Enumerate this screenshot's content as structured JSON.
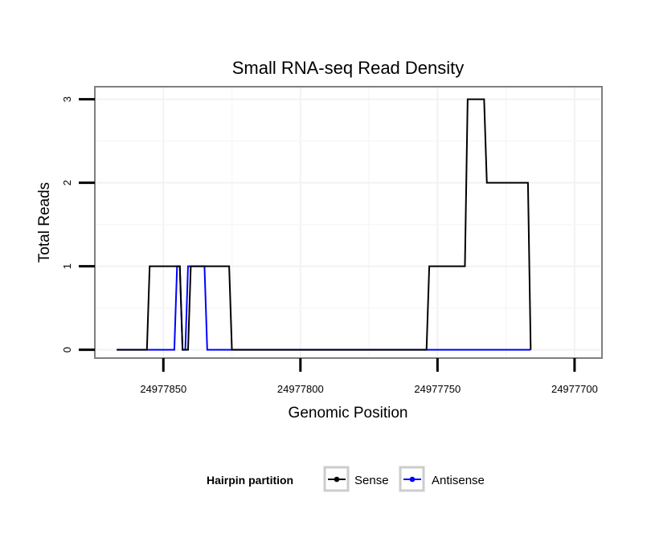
{
  "chart_data": {
    "type": "line",
    "title": "Small RNA-seq Read Density",
    "xlabel": "Genomic Position",
    "ylabel": "Total Reads",
    "xlim": [
      24977875,
      24977690
    ],
    "ylim": [
      -0.1,
      3.15
    ],
    "x_reversed": true,
    "x_ticks": [
      24977850,
      24977800,
      24977750,
      24977700
    ],
    "x_tick_labels": [
      "24977850",
      "24977800",
      "24977750",
      "24977700"
    ],
    "y_ticks": [
      0,
      1,
      2,
      3
    ],
    "y_tick_labels": [
      "0",
      "1",
      "2",
      "3"
    ],
    "grid": true,
    "legend_position": "bottom",
    "legend_title": "Hairpin partition",
    "series": [
      {
        "name": "Sense",
        "color": "#000000",
        "x": [
          24977867,
          24977856,
          24977855,
          24977844,
          24977843,
          24977841,
          24977840,
          24977826,
          24977825,
          24977754,
          24977753,
          24977740,
          24977739,
          24977733,
          24977732,
          24977717,
          24977716
        ],
        "y": [
          0,
          0,
          1,
          1,
          0,
          0,
          1,
          1,
          0,
          0,
          1,
          1,
          3,
          3,
          2,
          2,
          0
        ]
      },
      {
        "name": "Antisense",
        "color": "#0000ff",
        "x": [
          24977867,
          24977846,
          24977845,
          24977844,
          24977843,
          24977842,
          24977841,
          24977835,
          24977834,
          24977754,
          24977716
        ],
        "y": [
          0,
          0,
          1,
          1,
          0,
          0,
          1,
          1,
          0,
          0,
          0
        ]
      }
    ]
  }
}
